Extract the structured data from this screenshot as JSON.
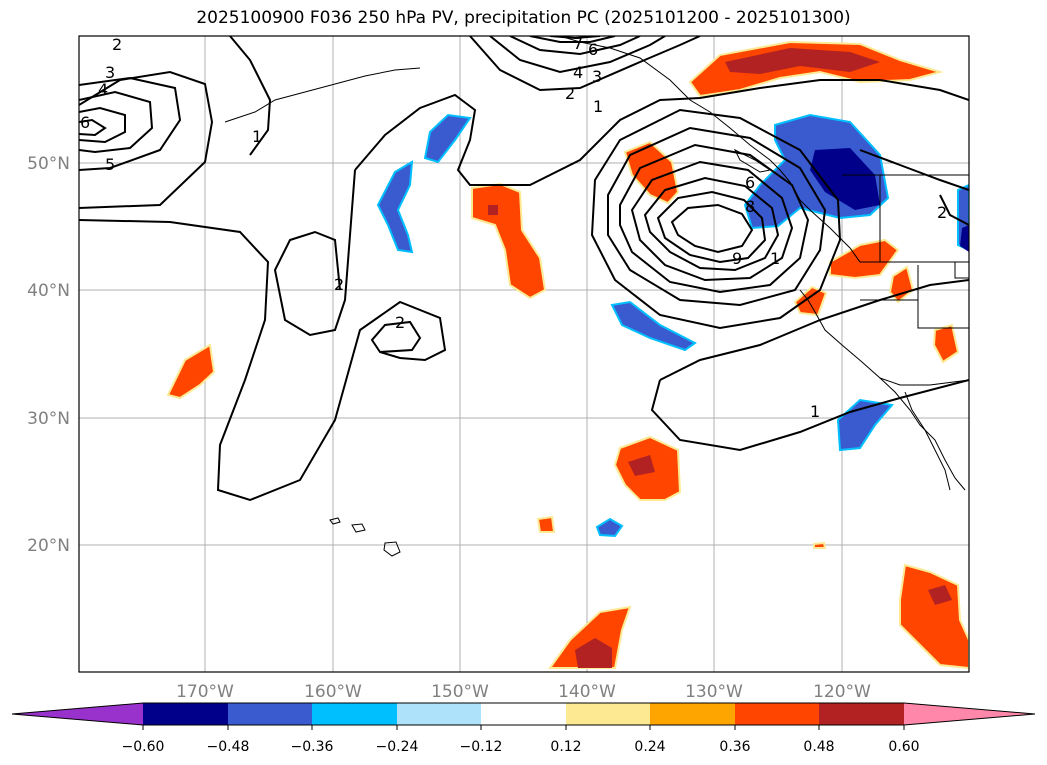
{
  "title": "2025100900 F036 250 hPa PV, precipitation PC (2025101200 - 2025101300)",
  "map": {
    "lat_labels": [
      "50°N",
      "40°N",
      "30°N",
      "20°N"
    ],
    "lon_labels": [
      "170°W",
      "160°W",
      "150°W",
      "140°W",
      "130°W",
      "120°W"
    ]
  },
  "colorbar": {
    "colors": [
      "#9932CC",
      "#00008B",
      "#3A5BD0",
      "#00BFFF",
      "#AEE2FA",
      "#FFFFFF",
      "#FCE992",
      "#FFA500",
      "#FF4500",
      "#B22222",
      "#FF88AA"
    ],
    "tick_labels": [
      "−0.60",
      "−0.48",
      "−0.36",
      "−0.24",
      "−0.12",
      "0.12",
      "0.24",
      "0.36",
      "0.48",
      "0.60"
    ]
  },
  "contour_labels": {
    "c2a": "2",
    "c3": "3",
    "c4": "4",
    "c6a": "6",
    "c5": "5",
    "c1a": "1",
    "c2b": "2",
    "c2c": "2",
    "c7": "7",
    "c6b": "6",
    "c4b": "4",
    "c3b": "3",
    "c2d": "2",
    "c1b": "1",
    "c6c": "6",
    "c8": "8",
    "c9": "9",
    "c1c": "1",
    "c1d": "1",
    "c2e": "2"
  }
}
